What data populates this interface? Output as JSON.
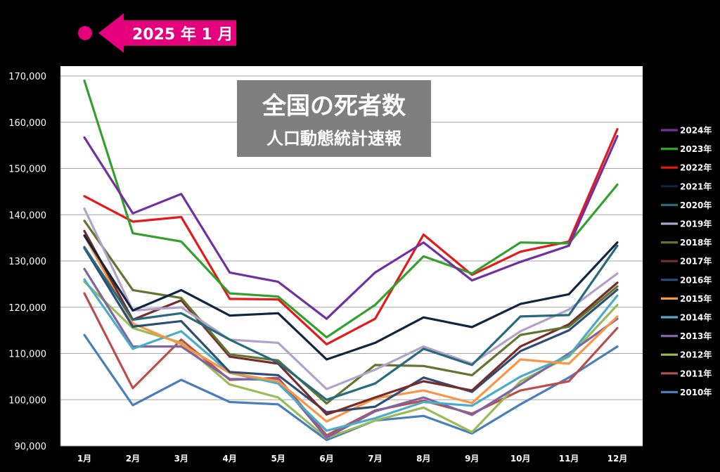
{
  "header": {
    "date_label": "2025 年 1 月",
    "accent_color": "#e6007e"
  },
  "chart_data": {
    "type": "line",
    "title": "全国の死者数",
    "subtitle": "人口動態統計速報",
    "categories": [
      "1月",
      "2月",
      "3月",
      "4月",
      "5月",
      "6月",
      "7月",
      "8月",
      "9月",
      "10月",
      "11月",
      "12月"
    ],
    "ylim": [
      90000,
      170000
    ],
    "y_ticks": [
      90000,
      100000,
      110000,
      120000,
      130000,
      140000,
      150000,
      160000,
      170000
    ],
    "y_tick_labels": [
      "90,000",
      "100,000",
      "110,000",
      "120,000",
      "130,000",
      "140,000",
      "150,000",
      "160,000",
      "170,000"
    ],
    "grid": true,
    "legend_position": "right",
    "series": [
      {
        "name": "2010年",
        "color": "#4a7ebb",
        "values": [
          114000,
          98800,
          104300,
          99500,
          99000,
          91300,
          95500,
          96500,
          92700,
          99000,
          104800,
          111500
        ]
      },
      {
        "name": "2011年",
        "color": "#b94f4c",
        "values": [
          123000,
          102500,
          113000,
          104300,
          104700,
          92300,
          97700,
          99800,
          97000,
          102000,
          104000,
          115500
        ]
      },
      {
        "name": "2012年",
        "color": "#9bbb59",
        "values": [
          125500,
          115500,
          112300,
          103300,
          100500,
          91700,
          95500,
          98300,
          93000,
          104000,
          109300,
          120500
        ]
      },
      {
        "name": "2013年",
        "color": "#8064a2",
        "values": [
          128300,
          111500,
          111500,
          104500,
          104300,
          91800,
          97500,
          100500,
          96700,
          103300,
          110000,
          117500
        ]
      },
      {
        "name": "2014年",
        "color": "#4bacc6",
        "values": [
          126000,
          111000,
          114800,
          105800,
          103500,
          93300,
          96000,
          99500,
          98700,
          105000,
          109500,
          122500
        ]
      },
      {
        "name": "2015年",
        "color": "#f79646",
        "values": [
          135500,
          116500,
          112000,
          105800,
          104000,
          95300,
          100300,
          102000,
          99300,
          108700,
          107800,
          118000
        ]
      },
      {
        "name": "2016年",
        "color": "#2c4d75",
        "values": [
          132800,
          115800,
          117000,
          106000,
          105300,
          97300,
          98500,
          104800,
          101700,
          110500,
          115000,
          123800
        ]
      },
      {
        "name": "2017年",
        "color": "#772c2a",
        "values": [
          136500,
          117300,
          121500,
          109300,
          107800,
          96800,
          100500,
          104000,
          102000,
          111500,
          116300,
          125300
        ]
      },
      {
        "name": "2018年",
        "color": "#5f7530",
        "values": [
          138700,
          123700,
          122000,
          109800,
          108500,
          99200,
          107500,
          107300,
          105300,
          114000,
          115800,
          124500
        ]
      },
      {
        "name": "2019年",
        "color": "#b3a2c7",
        "values": [
          141300,
          119300,
          120000,
          113000,
          112300,
          102300,
          106500,
          111500,
          107800,
          114800,
          119500,
          127300
        ]
      },
      {
        "name": "2020年",
        "color": "#276a7c",
        "values": [
          133000,
          117300,
          118700,
          113000,
          108000,
          100000,
          103500,
          111000,
          107500,
          118000,
          118300,
          133300
        ]
      },
      {
        "name": "2021年",
        "color": "#10253f",
        "values": [
          135500,
          119300,
          123700,
          118200,
          118700,
          108700,
          112300,
          117800,
          115700,
          120700,
          122800,
          134000
        ]
      },
      {
        "name": "2022年",
        "color": "#e31a1c",
        "values": [
          144000,
          138500,
          139500,
          121800,
          121700,
          112000,
          117500,
          135700,
          127000,
          132000,
          134200,
          158500
        ]
      },
      {
        "name": "2023年",
        "color": "#33a02c",
        "values": [
          169000,
          136000,
          134200,
          123000,
          122300,
          113500,
          120500,
          131000,
          127300,
          134000,
          133800,
          146500
        ]
      },
      {
        "name": "2024年",
        "color": "#7030a0",
        "values": [
          156700,
          140300,
          144500,
          127500,
          125500,
          117500,
          127500,
          134000,
          125800,
          129800,
          133300,
          157000
        ]
      }
    ]
  }
}
